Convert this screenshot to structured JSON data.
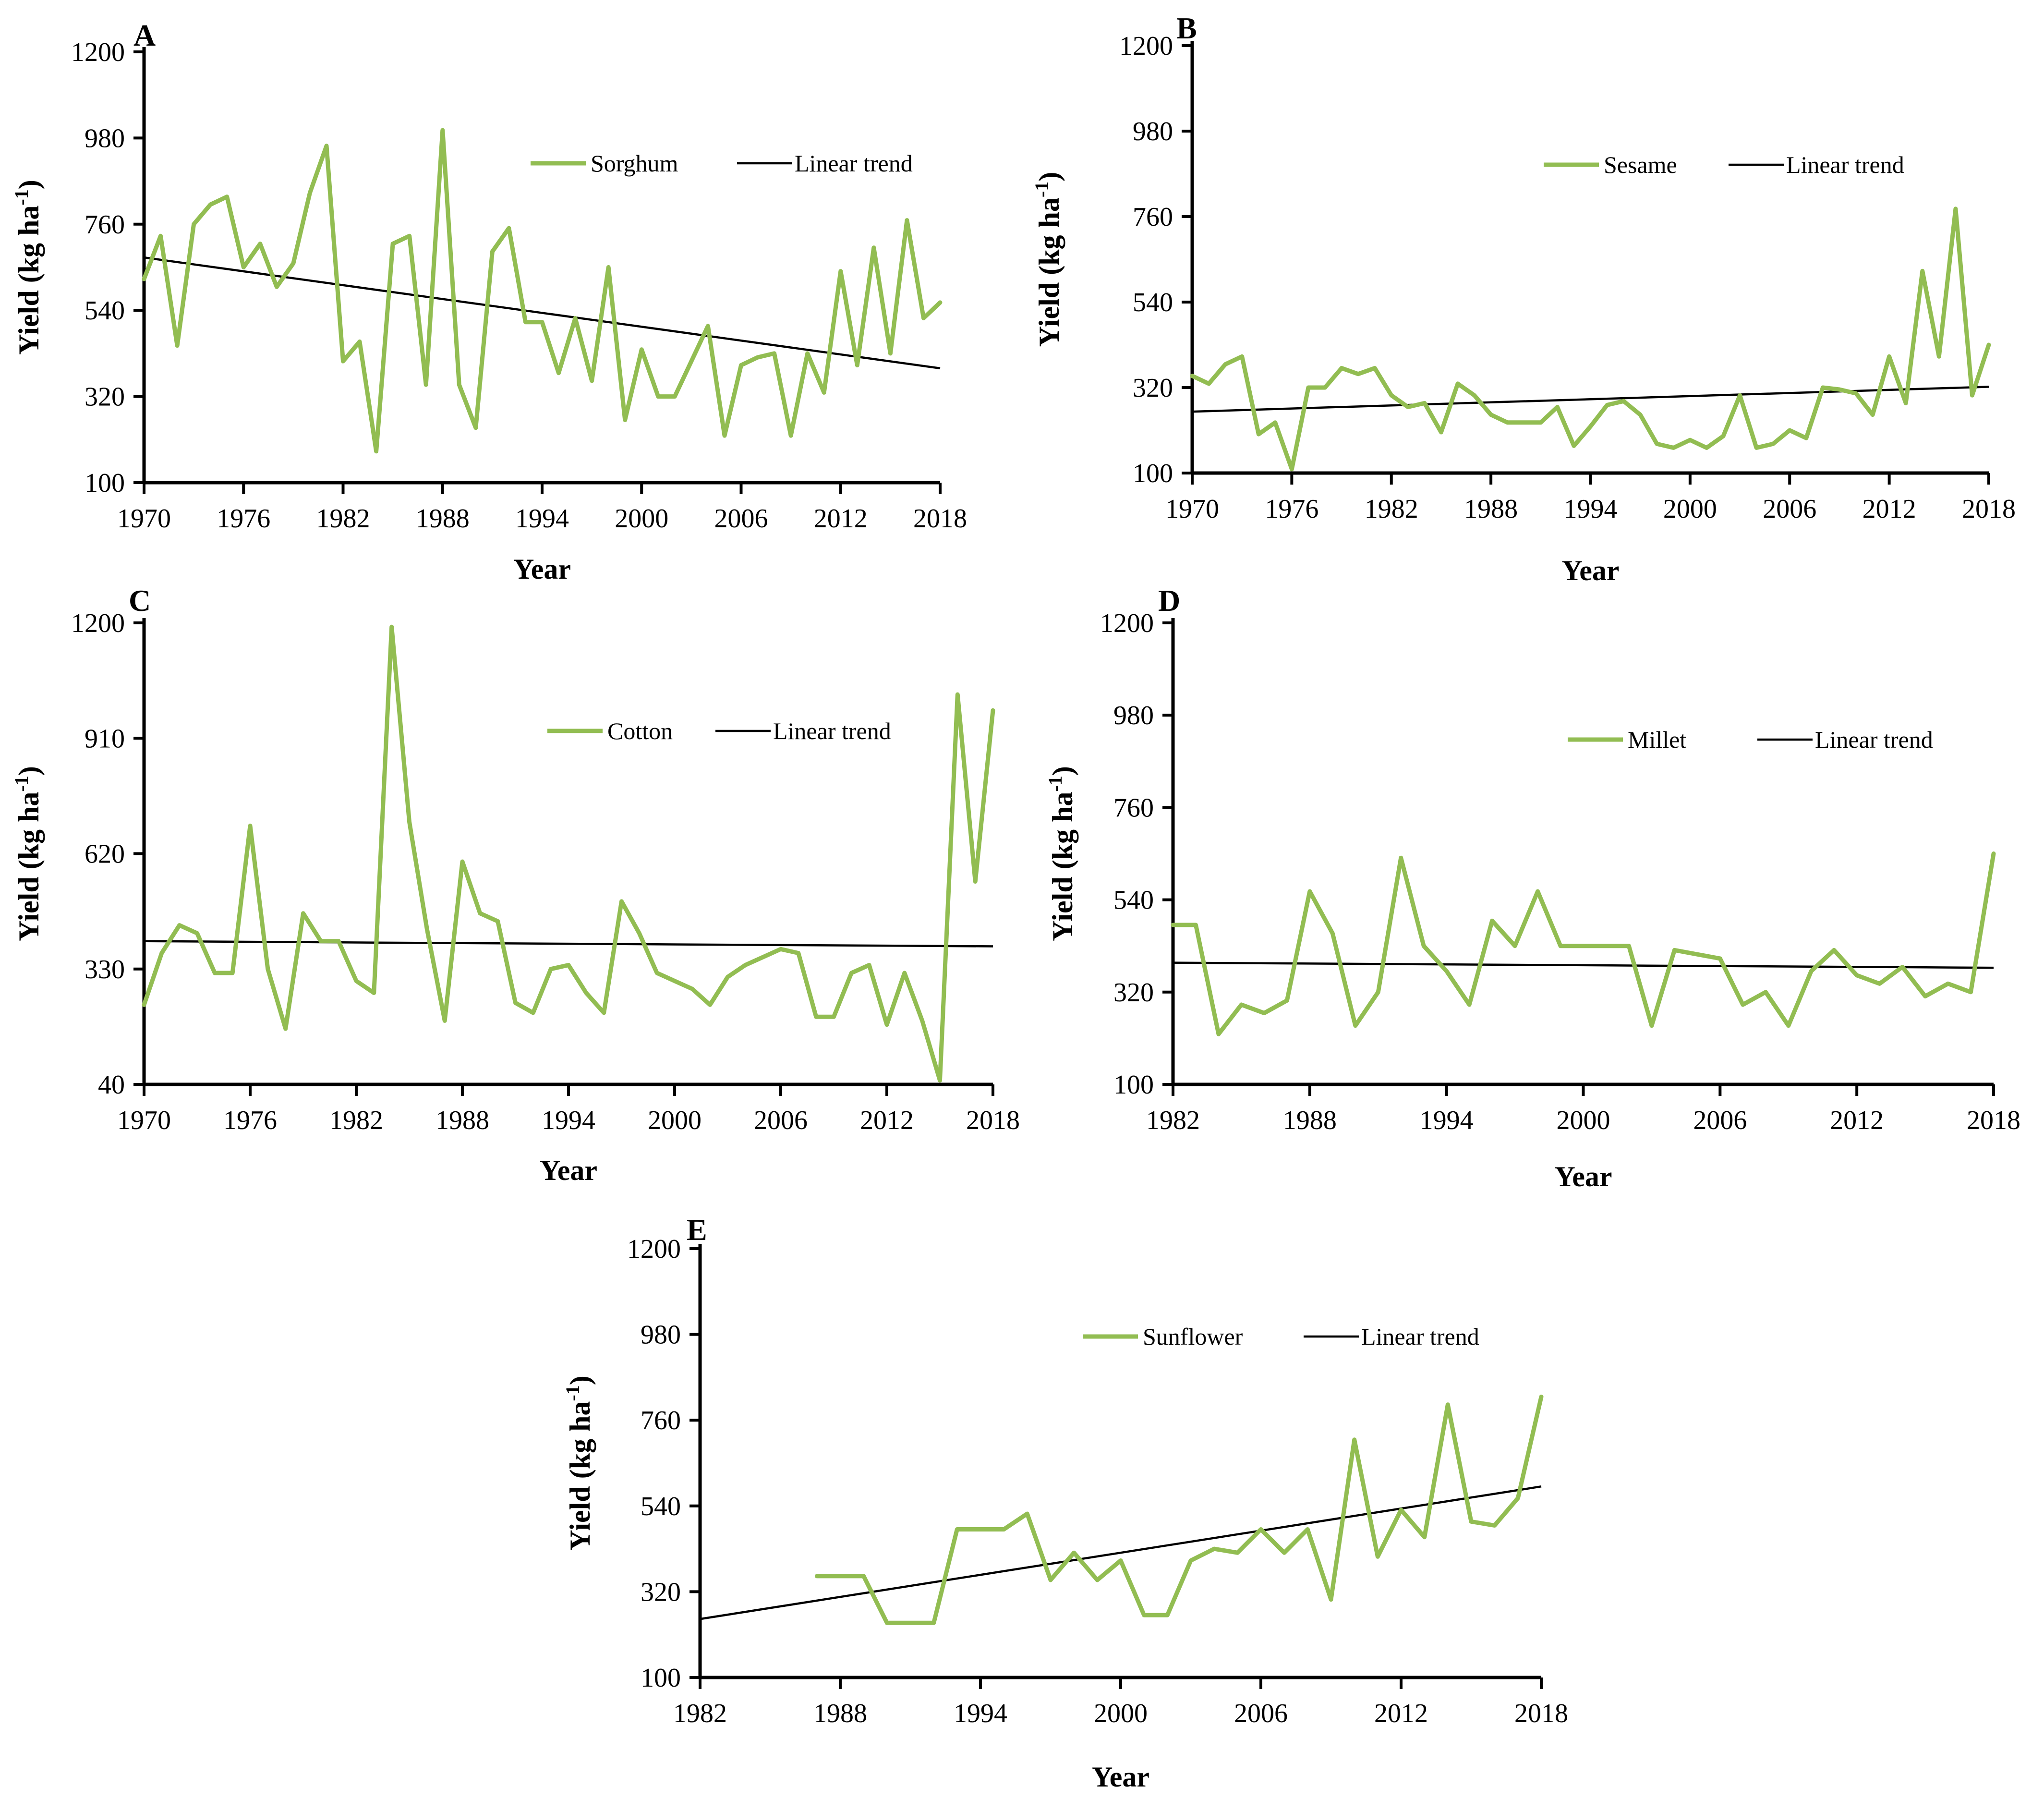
{
  "chart_data": [
    {
      "type": "line",
      "panel_label": "A",
      "xlabel": "Year",
      "ylabel_main": "Yield (kg ha",
      "ylabel_sup": "-1",
      "ylabel_close": ")",
      "ylim": [
        100,
        1200
      ],
      "yticks": [
        100,
        320,
        540,
        760,
        980,
        1200
      ],
      "xlim": [
        1970,
        2018
      ],
      "xticks": [
        1970,
        1976,
        1982,
        1988,
        1994,
        2000,
        2006,
        2012,
        2018
      ],
      "colors": {
        "series": "#92bd52",
        "trend": "#000000"
      },
      "series": [
        {
          "name": "Sorghum",
          "x": [
            1970,
            1971,
            1972,
            1973,
            1974,
            1975,
            1976,
            1977,
            1978,
            1979,
            1980,
            1981,
            1982,
            1983,
            1984,
            1985,
            1986,
            1987,
            1988,
            1989,
            1990,
            1991,
            1992,
            1993,
            1994,
            1995,
            1996,
            1997,
            1998,
            1999,
            2000,
            2001,
            2002,
            2003,
            2004,
            2005,
            2006,
            2007,
            2008,
            2009,
            2010,
            2011,
            2012,
            2013,
            2014,
            2015,
            2016,
            2017,
            2018
          ],
          "values": [
            620,
            730,
            450,
            760,
            810,
            830,
            650,
            710,
            600,
            660,
            840,
            960,
            410,
            460,
            180,
            710,
            730,
            350,
            1000,
            350,
            240,
            690,
            750,
            510,
            510,
            380,
            520,
            360,
            650,
            260,
            440,
            320,
            320,
            410,
            500,
            220,
            400,
            420,
            430,
            220,
            430,
            330,
            640,
            400,
            700,
            430,
            770,
            520,
            560
          ]
        }
      ],
      "trend": {
        "name": "Linear trend",
        "x": [
          1970,
          2018
        ],
        "values": [
          675,
          392
        ]
      }
    },
    {
      "type": "line",
      "panel_label": "B",
      "xlabel": "Year",
      "ylabel_main": "Yield (kg ha",
      "ylabel_sup": "-1",
      "ylabel_close": ")",
      "ylim": [
        100,
        1200
      ],
      "yticks": [
        100,
        320,
        540,
        760,
        980,
        1200
      ],
      "xlim": [
        1970,
        2018
      ],
      "xticks": [
        1970,
        1976,
        1982,
        1988,
        1994,
        2000,
        2006,
        2012,
        2018
      ],
      "colors": {
        "series": "#92bd52",
        "trend": "#000000"
      },
      "series": [
        {
          "name": "Sesame",
          "x": [
            1970,
            1971,
            1972,
            1973,
            1974,
            1975,
            1976,
            1977,
            1978,
            1979,
            1980,
            1981,
            1982,
            1983,
            1984,
            1985,
            1986,
            1987,
            1988,
            1989,
            1990,
            1991,
            1992,
            1993,
            1994,
            1995,
            1996,
            1997,
            1998,
            1999,
            2000,
            2001,
            2002,
            2003,
            2004,
            2005,
            2006,
            2007,
            2008,
            2009,
            2010,
            2011,
            2012,
            2013,
            2014,
            2015,
            2016,
            2017,
            2018
          ],
          "values": [
            350,
            330,
            380,
            400,
            200,
            230,
            110,
            320,
            320,
            370,
            355,
            370,
            300,
            270,
            280,
            205,
            330,
            300,
            250,
            230,
            230,
            230,
            270,
            170,
            220,
            275,
            285,
            250,
            175,
            165,
            185,
            165,
            195,
            300,
            165,
            175,
            210,
            190,
            320,
            315,
            305,
            250,
            400,
            280,
            620,
            400,
            780,
            300,
            430
          ]
        }
      ],
      "trend": {
        "name": "Linear trend",
        "x": [
          1970,
          2018
        ],
        "values": [
          258,
          322
        ]
      }
    },
    {
      "type": "line",
      "panel_label": "C",
      "xlabel": "Year",
      "ylabel_main": "Yield (kg ha",
      "ylabel_sup": "-1",
      "ylabel_close": ")",
      "ylim": [
        40,
        1200
      ],
      "yticks": [
        40,
        330,
        620,
        910,
        1200
      ],
      "xlim": [
        1970,
        2018
      ],
      "xticks": [
        1970,
        1976,
        1982,
        1988,
        1994,
        2000,
        2006,
        2012,
        2018
      ],
      "colors": {
        "series": "#92bd52",
        "trend": "#000000"
      },
      "series": [
        {
          "name": "Cotton",
          "x": [
            1970,
            1971,
            1972,
            1973,
            1974,
            1975,
            1976,
            1977,
            1978,
            1979,
            1980,
            1981,
            1982,
            1983,
            1984,
            1985,
            1986,
            1987,
            1988,
            1989,
            1990,
            1991,
            1992,
            1993,
            1994,
            1995,
            1996,
            1997,
            1998,
            1999,
            2000,
            2001,
            2002,
            2003,
            2004,
            2005,
            2006,
            2007,
            2008,
            2009,
            2010,
            2011,
            2012,
            2013,
            2014,
            2015,
            2016,
            2017,
            2018
          ],
          "values": [
            240,
            370,
            440,
            420,
            320,
            320,
            690,
            330,
            180,
            470,
            400,
            400,
            300,
            270,
            1190,
            700,
            430,
            200,
            600,
            470,
            450,
            245,
            220,
            330,
            340,
            270,
            220,
            500,
            420,
            320,
            300,
            280,
            240,
            310,
            340,
            360,
            380,
            370,
            210,
            210,
            320,
            340,
            190,
            320,
            200,
            50,
            1020,
            550,
            980
          ]
        }
      ],
      "trend": {
        "name": "Linear trend",
        "x": [
          1970,
          2018
        ],
        "values": [
          400,
          387
        ]
      }
    },
    {
      "type": "line",
      "panel_label": "D",
      "xlabel": "Year",
      "ylabel_main": "Yield (kg ha",
      "ylabel_sup": "-1",
      "ylabel_close": ")",
      "ylim": [
        100,
        1200
      ],
      "yticks": [
        100,
        320,
        540,
        760,
        980,
        1200
      ],
      "xlim": [
        1982,
        2018
      ],
      "xticks": [
        1982,
        1988,
        1994,
        2000,
        2006,
        2012,
        2018
      ],
      "colors": {
        "series": "#92bd52",
        "trend": "#000000"
      },
      "series": [
        {
          "name": "Millet",
          "x": [
            1982,
            1983,
            1984,
            1985,
            1986,
            1987,
            1988,
            1989,
            1990,
            1991,
            1992,
            1993,
            1994,
            1995,
            1996,
            1997,
            1998,
            1999,
            2000,
            2001,
            2002,
            2003,
            2004,
            2005,
            2006,
            2007,
            2008,
            2009,
            2010,
            2011,
            2012,
            2013,
            2014,
            2015,
            2016,
            2017,
            2018
          ],
          "values": [
            480,
            480,
            220,
            290,
            270,
            300,
            560,
            460,
            240,
            320,
            640,
            430,
            370,
            290,
            490,
            430,
            560,
            430,
            430,
            430,
            430,
            240,
            420,
            410,
            400,
            290,
            320,
            240,
            370,
            420,
            360,
            340,
            380,
            310,
            340,
            320,
            650
          ]
        }
      ],
      "trend": {
        "name": "Linear trend",
        "x": [
          1982,
          2018
        ],
        "values": [
          390,
          378
        ]
      }
    },
    {
      "type": "line",
      "panel_label": "E",
      "xlabel": "Year",
      "ylabel_main": "Yield (kg ha",
      "ylabel_sup": "-1",
      "ylabel_close": ")",
      "ylim": [
        100,
        1200
      ],
      "yticks": [
        100,
        320,
        540,
        760,
        980,
        1200
      ],
      "xlim": [
        1982,
        2018
      ],
      "xticks": [
        1982,
        1988,
        1994,
        2000,
        2006,
        2012,
        2018
      ],
      "colors": {
        "series": "#92bd52",
        "trend": "#000000"
      },
      "series": [
        {
          "name": "Sunflower",
          "x": [
            1987,
            1988,
            1989,
            1990,
            1991,
            1992,
            1993,
            1994,
            1995,
            1996,
            1997,
            1998,
            1999,
            2000,
            2001,
            2002,
            2003,
            2004,
            2005,
            2006,
            2007,
            2008,
            2009,
            2010,
            2011,
            2012,
            2013,
            2014,
            2015,
            2016,
            2017,
            2018
          ],
          "values": [
            360,
            360,
            360,
            240,
            240,
            240,
            480,
            480,
            480,
            520,
            350,
            420,
            350,
            400,
            260,
            260,
            400,
            430,
            420,
            480,
            420,
            480,
            300,
            710,
            410,
            530,
            460,
            800,
            500,
            490,
            560,
            820
          ]
        }
      ],
      "trend": {
        "name": "Linear trend",
        "x": [
          1982,
          2018
        ],
        "values": [
          250,
          590
        ]
      }
    }
  ]
}
